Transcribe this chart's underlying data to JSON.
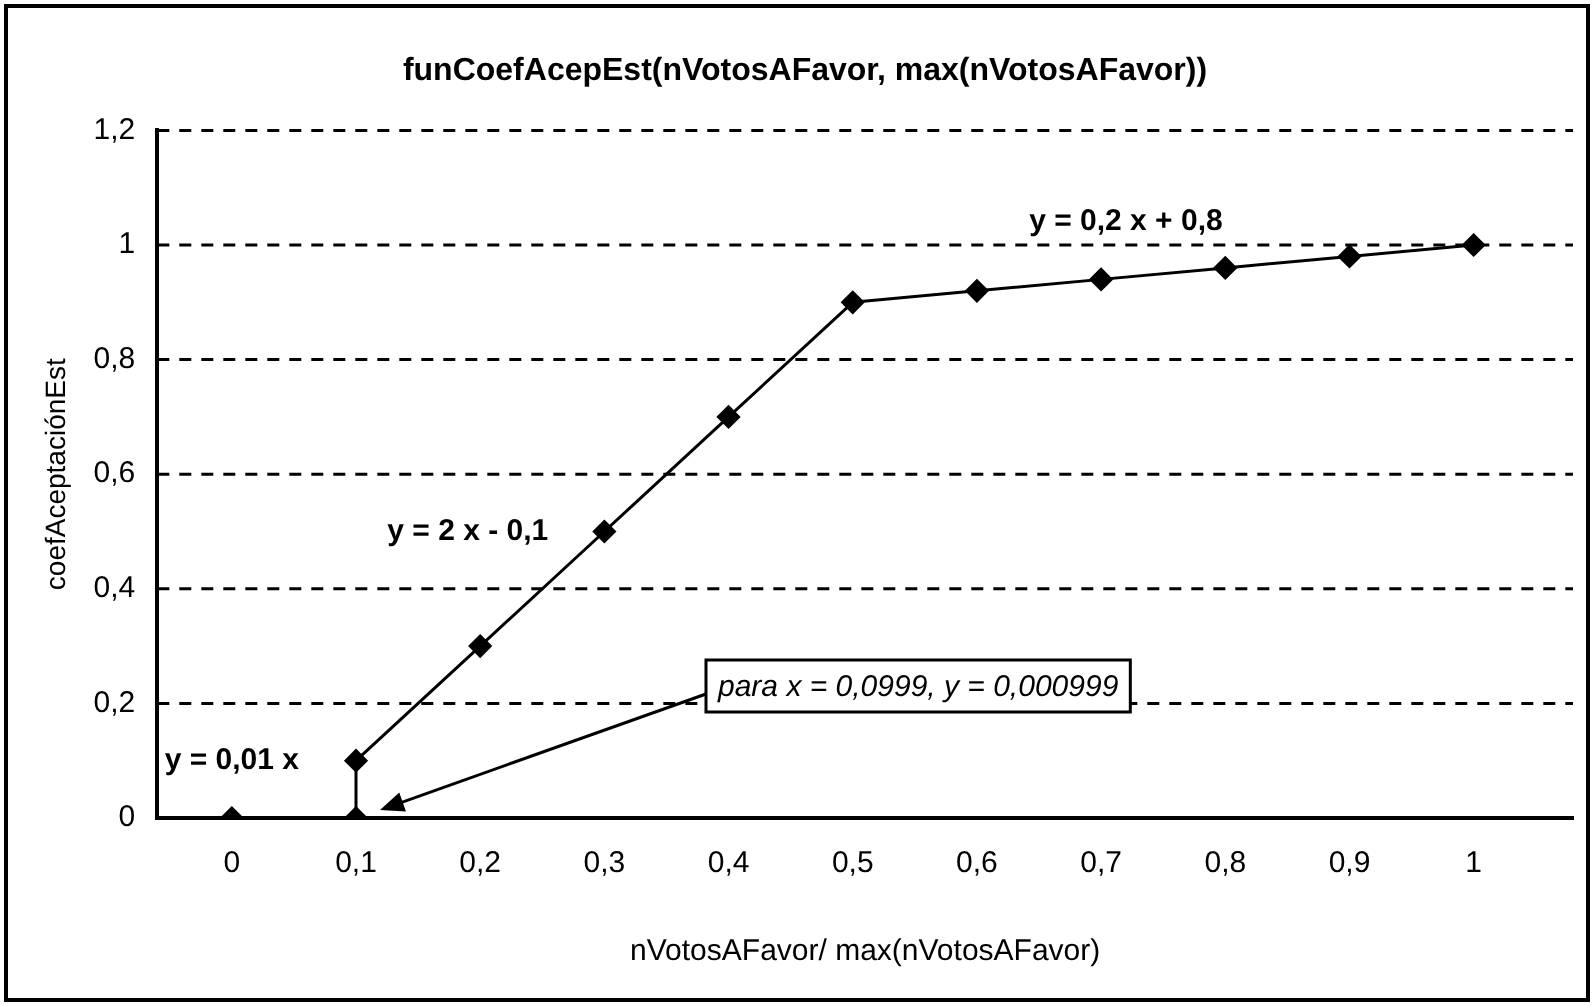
{
  "chart_data": {
    "type": "line",
    "title": "funCoefAcepEst(nVotosAFavor, max(nVotosAFavor))",
    "xlabel": "nVotosAFavor/ max(nVotosAFavor)",
    "ylabel": "coefAceptaciónEst",
    "x": [
      0,
      0.1,
      0.1,
      0.2,
      0.3,
      0.4,
      0.5,
      0.6,
      0.7,
      0.8,
      0.9,
      1
    ],
    "series": [
      {
        "color": "#000000",
        "values": [
          0,
          0,
          0.1,
          0.3,
          0.5,
          0.7,
          0.9,
          0.92,
          0.94,
          0.96,
          0.98,
          1
        ]
      }
    ],
    "xlim": [
      -0.06,
      1.08
    ],
    "xticks": [
      0,
      {
        "value": 0.1,
        "label": "0,1"
      },
      {
        "value": 0.2,
        "label": "0,2"
      },
      {
        "value": 0.3,
        "label": "0,3"
      },
      {
        "value": 0.4,
        "label": "0,4"
      },
      {
        "value": 0.5,
        "label": "0,5"
      },
      {
        "value": 0.6,
        "label": "0,6"
      },
      {
        "value": 0.7,
        "label": "0,7"
      },
      {
        "value": 0.8,
        "label": "0,8"
      },
      {
        "value": 0.9,
        "label": "0,9"
      },
      1
    ],
    "ylim": [
      0,
      1.2
    ],
    "yticks": [
      0,
      {
        "value": 0.2,
        "label": "0,2"
      },
      {
        "value": 0.4,
        "label": "0,4"
      },
      {
        "value": 0.6,
        "label": "0,6"
      },
      {
        "value": 0.8,
        "label": "0,8"
      },
      1,
      {
        "value": 1.2,
        "label": "1,2"
      }
    ],
    "grid": "y",
    "marker": "diamond",
    "line_style": "solid",
    "annotations": [
      "y = 0,01 x",
      "y = 2 x - 0,1",
      "y = 0,2 x + 0,8",
      "para x = 0,0999, y = 0,000999"
    ]
  }
}
